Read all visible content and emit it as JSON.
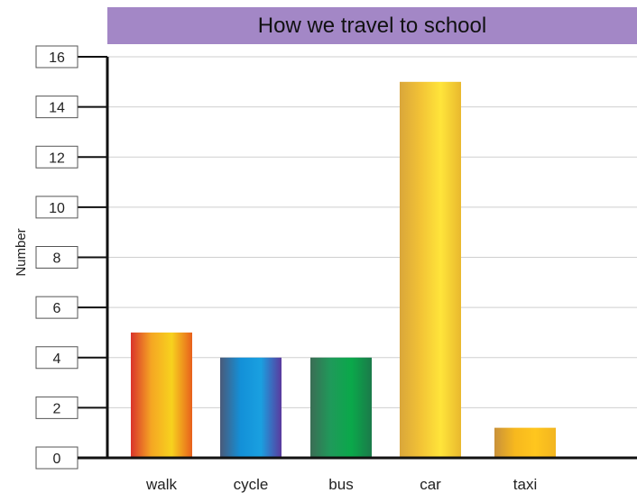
{
  "chart_data": {
    "type": "bar",
    "title": "How we travel to school",
    "xlabel": "",
    "ylabel": "Number",
    "categories": [
      "walk",
      "cycle",
      "bus",
      "car",
      "taxi"
    ],
    "values": [
      5,
      4,
      4,
      15,
      1.2
    ],
    "ylim": [
      0,
      16
    ],
    "yticks": [
      0,
      2,
      4,
      6,
      8,
      10,
      12,
      14,
      16
    ],
    "grid": true,
    "legend": "none"
  },
  "colors": {
    "title_band": "#a387c6",
    "walk": [
      "#d9342b",
      "#f5a623",
      "#f7d21e",
      "#e8601c"
    ],
    "cycle": [
      "#4a5a7a",
      "#1390d8",
      "#1aa0e0",
      "#5b3a9e"
    ],
    "bus": [
      "#3b6d55",
      "#1f9a5a",
      "#0aa84a",
      "#1b7a4a"
    ],
    "car": [
      "#d9a63a",
      "#f2c236",
      "#ffe53a",
      "#e9b82e"
    ],
    "taxi": [
      "#c9913a",
      "#f7b81e",
      "#ffc61e",
      "#f2b520"
    ]
  }
}
